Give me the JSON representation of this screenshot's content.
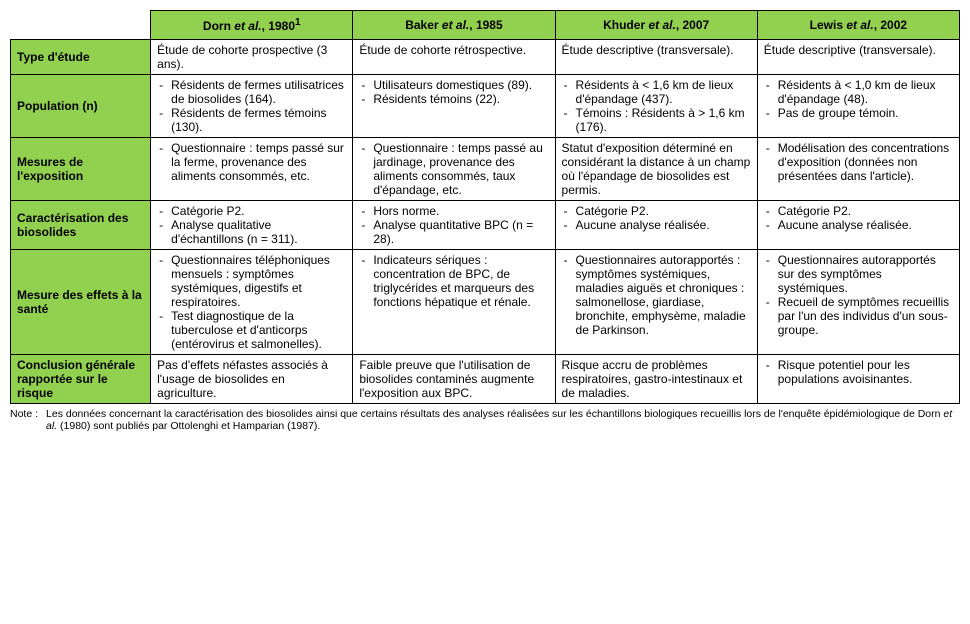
{
  "colors": {
    "header_bg": "#92d050",
    "border": "#000000",
    "text": "#000000",
    "page_bg": "#ffffff"
  },
  "typography": {
    "base_fontsize_pt": 12,
    "note_fontsize_pt": 10.5,
    "family": "Arial"
  },
  "columns": [
    {
      "author": "Dorn",
      "suffix": "et al.",
      "year": "1980",
      "sup": "1"
    },
    {
      "author": "Baker",
      "suffix": "et al.",
      "year": "1985",
      "sup": ""
    },
    {
      "author": "Khuder",
      "suffix": "et al.",
      "year": "2007",
      "sup": ""
    },
    {
      "author": "Lewis",
      "suffix": "et al.",
      "year": "2002",
      "sup": ""
    }
  ],
  "rows": [
    {
      "label": "Type d'étude",
      "cells": [
        {
          "type": "text",
          "text": "Étude de cohorte prospective (3 ans)."
        },
        {
          "type": "text",
          "text": "Étude de cohorte rétrospective."
        },
        {
          "type": "text",
          "text": "Étude descriptive (transversale)."
        },
        {
          "type": "text",
          "text": "Étude descriptive (transversale)."
        }
      ]
    },
    {
      "label": "Population (n)",
      "cells": [
        {
          "type": "list",
          "items": [
            "Résidents de fermes utilisatrices de biosolides (164).",
            "Résidents de fermes témoins (130)."
          ]
        },
        {
          "type": "list",
          "items": [
            "Utilisateurs domestiques (89).",
            "Résidents témoins (22)."
          ]
        },
        {
          "type": "list",
          "items": [
            "Résidents à < 1,6 km de lieux d'épandage (437).",
            "Témoins : Résidents à > 1,6 km (176)."
          ]
        },
        {
          "type": "list",
          "items": [
            "Résidents à < 1,0 km de lieux d'épandage (48).",
            "Pas de groupe témoin."
          ]
        }
      ]
    },
    {
      "label": "Mesures de l'exposition",
      "cells": [
        {
          "type": "list",
          "items": [
            "Questionnaire : temps passé sur la ferme, provenance des aliments consommés, etc."
          ]
        },
        {
          "type": "list",
          "items": [
            "Questionnaire : temps passé au jardinage, provenance des aliments consommés, taux d'épandage, etc."
          ]
        },
        {
          "type": "text",
          "text": "Statut d'exposition déterminé en considérant la distance à un champ où l'épandage de biosolides est permis."
        },
        {
          "type": "list",
          "items": [
            "Modélisation des concentrations d'exposition (données non présentées dans l'article)."
          ]
        }
      ]
    },
    {
      "label": "Caractérisation des biosolides",
      "cells": [
        {
          "type": "list",
          "items": [
            "Catégorie P2.",
            "Analyse qualitative d'échantillons (n = 311)."
          ]
        },
        {
          "type": "list",
          "items": [
            "Hors norme.",
            "Analyse quantitative BPC (n = 28)."
          ]
        },
        {
          "type": "list",
          "items": [
            "Catégorie P2.",
            "Aucune analyse réalisée."
          ]
        },
        {
          "type": "list",
          "items": [
            "Catégorie P2.",
            "Aucune analyse réalisée."
          ]
        }
      ]
    },
    {
      "label": "Mesure des effets à la santé",
      "cells": [
        {
          "type": "list",
          "items": [
            "Questionnaires téléphoniques mensuels : symptômes systémiques, digestifs et respiratoires.",
            "Test diagnostique de la tuberculose et d'anticorps (entérovirus et salmonelles)."
          ]
        },
        {
          "type": "list",
          "items": [
            "Indicateurs sériques : concentration de BPC, de triglycérides et marqueurs des fonctions hépatique et rénale."
          ]
        },
        {
          "type": "list",
          "items": [
            "Questionnaires autorapportés : symptômes systémiques, maladies aiguës et chroniques : salmonellose, giardiase, bronchite, emphysème, maladie de Parkinson."
          ]
        },
        {
          "type": "list",
          "items": [
            "Questionnaires autorapportés sur des symptômes systémiques.",
            "Recueil de symptômes recueillis par l'un des individus d'un sous-groupe."
          ]
        }
      ]
    },
    {
      "label": "Conclusion générale rapportée sur le risque",
      "cells": [
        {
          "type": "text",
          "text": "Pas d'effets néfastes associés à l'usage de biosolides en agriculture."
        },
        {
          "type": "text",
          "text": "Faible preuve que l'utilisation de biosolides contaminés augmente l'exposition aux BPC."
        },
        {
          "type": "text",
          "text": "Risque accru de problèmes respiratoires, gastro-intestinaux et de maladies."
        },
        {
          "type": "list",
          "items": [
            "Risque potentiel pour les populations avoisinantes."
          ]
        }
      ]
    }
  ],
  "note": {
    "label": "Note :",
    "text_pre": "Les données concernant la caractérisation des biosolides ainsi que certains résultats des analyses réalisées sur les échantillons biologiques recueillis lors de l'enquête épidémiologique de Dorn ",
    "italic1": "et al.",
    "text_post": " (1980) sont publiés par Ottolenghi et Hamparian (1987)."
  }
}
